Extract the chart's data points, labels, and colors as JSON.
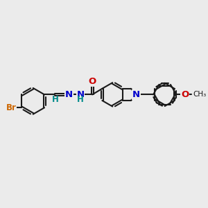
{
  "bg_color": "#ebebeb",
  "bond_color": "#1a1a1a",
  "bond_width": 1.5,
  "dbo": 0.055,
  "atom_colors": {
    "Br": "#cc6600",
    "N": "#0000cc",
    "O": "#cc0000",
    "H": "#008b8b"
  },
  "font_size": 9.5,
  "fig_size": [
    3.0,
    3.0
  ],
  "dpi": 100
}
